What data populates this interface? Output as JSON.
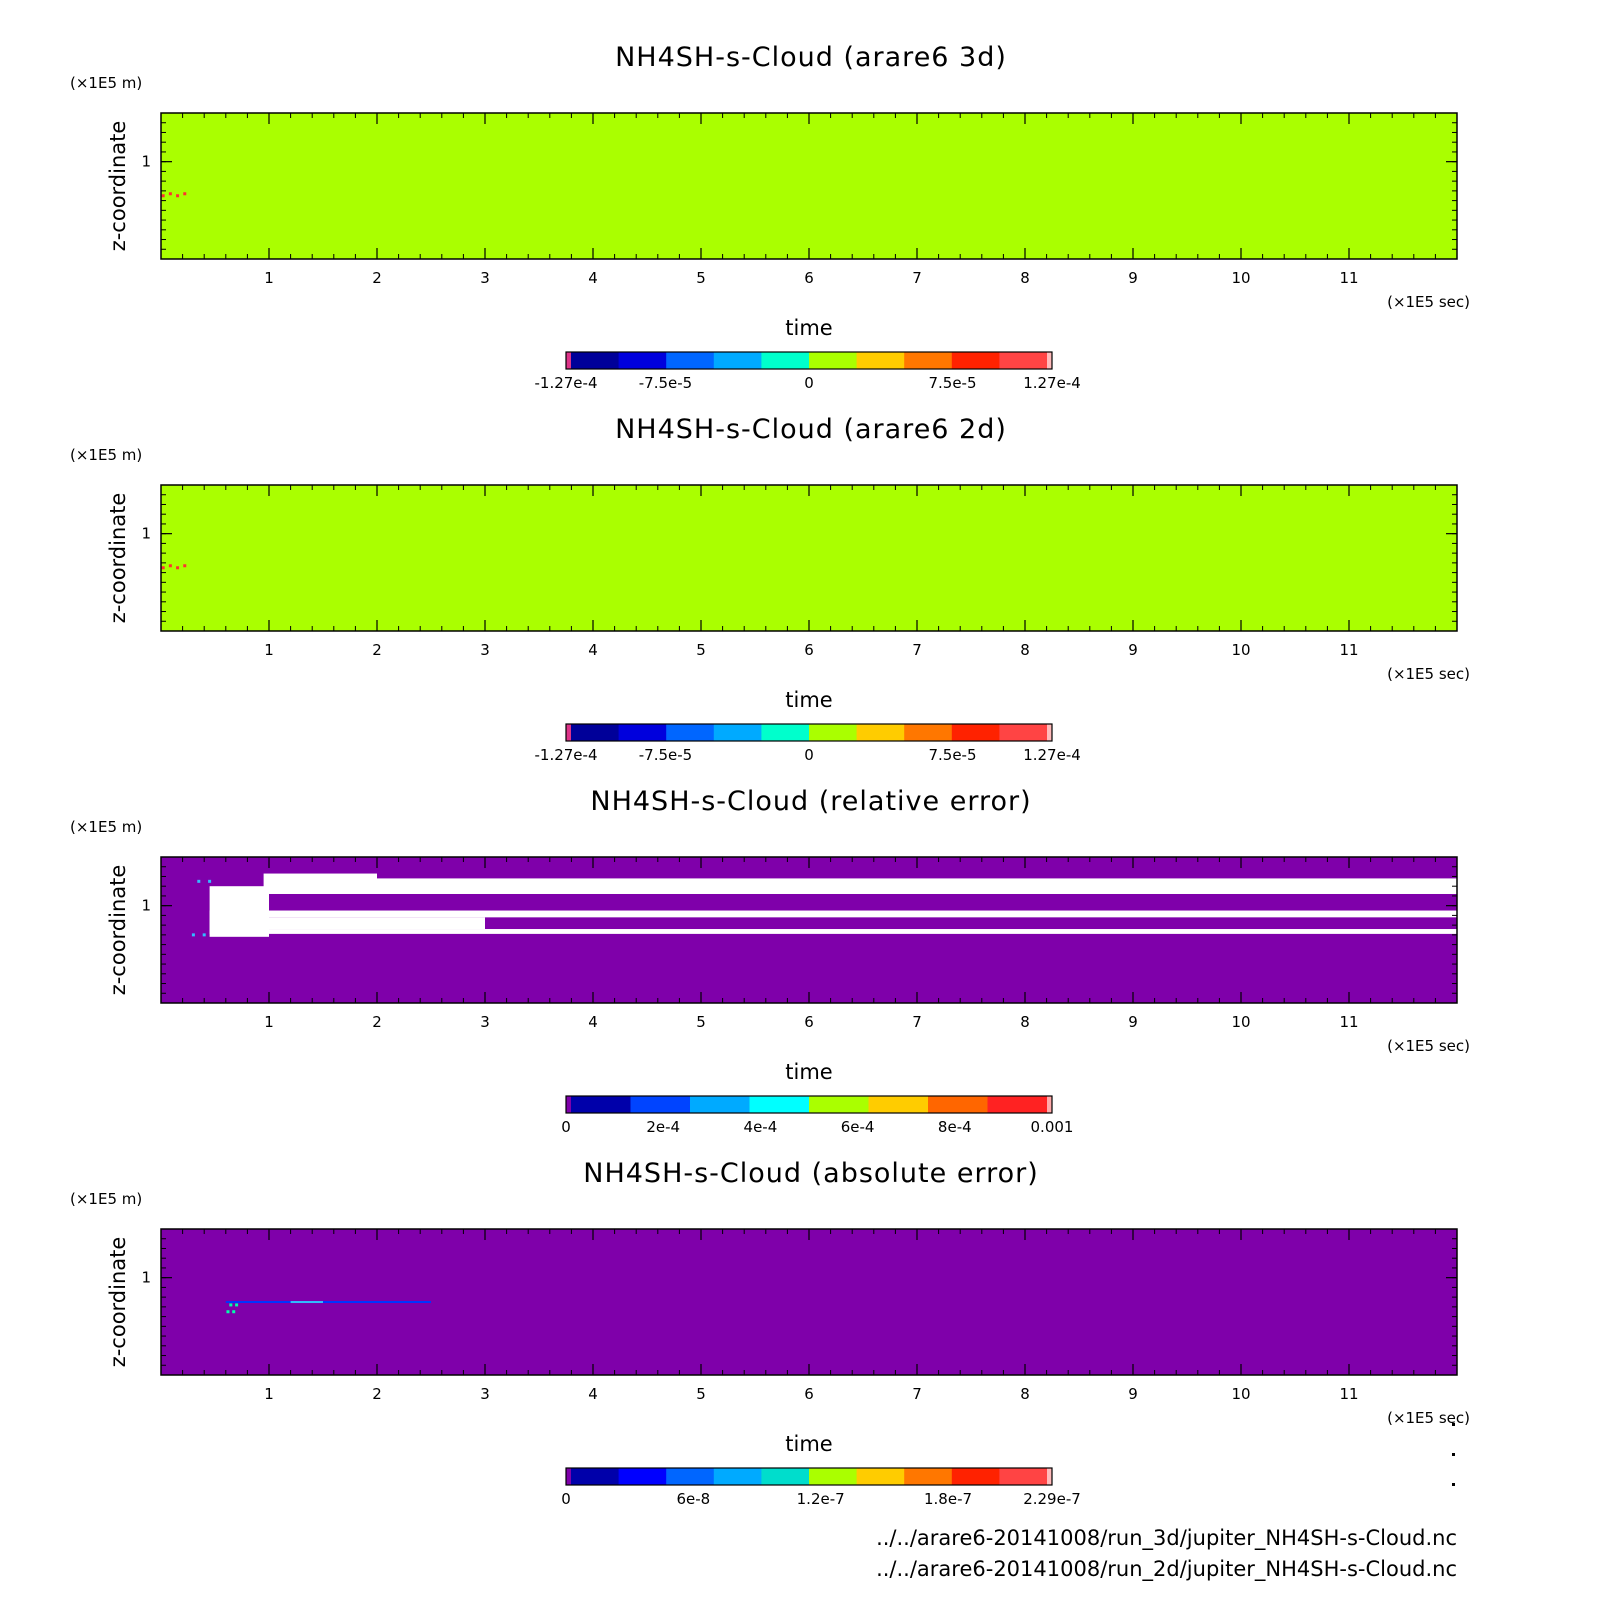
{
  "chart_data": [
    {
      "type": "heatmap",
      "title": "NH4SH-s-Cloud (arare6 3d)",
      "xlabel": "time",
      "ylabel": "z-coordinate",
      "x_unit": "(×1E5 sec)",
      "y_unit": "(×1E5 m)",
      "xlim": [
        0,
        12
      ],
      "ylim": [
        0,
        1.5
      ],
      "x_ticks": [
        1,
        2,
        3,
        4,
        5,
        6,
        7,
        8,
        9,
        10,
        11
      ],
      "y_ticks": [
        1
      ],
      "background_color": "#aaff00",
      "features": [
        {
          "x": [
            0.02,
            0.22
          ],
          "y": [
            0.66,
            0.66
          ],
          "color": "#ff3030",
          "kind": "dots"
        }
      ],
      "colorbar": {
        "range": [
          -0.000127,
          0.000127
        ],
        "colors": [
          "#dd3388",
          "#000099",
          "#0000dd",
          "#0066ff",
          "#00aaff",
          "#00ffcc",
          "#aaff00",
          "#ffcc00",
          "#ff7700",
          "#ff2200",
          "#ff4444",
          "#ffbbbb"
        ],
        "labels": [
          "-1.27e-4",
          "-7.5e-5",
          "0",
          "7.5e-5",
          "1.27e-4"
        ],
        "label_values": [
          -0.000127,
          -7.5e-05,
          0,
          7.5e-05,
          0.000127
        ]
      }
    },
    {
      "type": "heatmap",
      "title": "NH4SH-s-Cloud (arare6 2d)",
      "xlabel": "time",
      "ylabel": "z-coordinate",
      "x_unit": "(×1E5 sec)",
      "y_unit": "(×1E5 m)",
      "xlim": [
        0,
        12
      ],
      "ylim": [
        0,
        1.5
      ],
      "x_ticks": [
        1,
        2,
        3,
        4,
        5,
        6,
        7,
        8,
        9,
        10,
        11
      ],
      "y_ticks": [
        1
      ],
      "background_color": "#aaff00",
      "features": [
        {
          "x": [
            0.02,
            0.22
          ],
          "y": [
            0.66,
            0.66
          ],
          "color": "#ff3030",
          "kind": "dots"
        }
      ],
      "colorbar": {
        "range": [
          -0.000127,
          0.000127
        ],
        "colors": [
          "#dd3388",
          "#000099",
          "#0000dd",
          "#0066ff",
          "#00aaff",
          "#00ffcc",
          "#aaff00",
          "#ffcc00",
          "#ff7700",
          "#ff2200",
          "#ff4444",
          "#ffbbbb"
        ],
        "labels": [
          "-1.27e-4",
          "-7.5e-5",
          "0",
          "7.5e-5",
          "1.27e-4"
        ],
        "label_values": [
          -0.000127,
          -7.5e-05,
          0,
          7.5e-05,
          0.000127
        ]
      }
    },
    {
      "type": "heatmap",
      "title": "NH4SH-s-Cloud (relative error)",
      "xlabel": "time",
      "ylabel": "z-coordinate",
      "x_unit": "(×1E5 sec)",
      "y_unit": "(×1E5 m)",
      "xlim": [
        0,
        12
      ],
      "ylim": [
        0,
        1.5
      ],
      "x_ticks": [
        1,
        2,
        3,
        4,
        5,
        6,
        7,
        8,
        9,
        10,
        11
      ],
      "y_ticks": [
        1
      ],
      "background_color": "#7f00aa",
      "features": [
        {
          "x": [
            0.95,
            2.0
          ],
          "y": [
            1.12,
            1.33
          ],
          "color": "#ffffff",
          "kind": "band"
        },
        {
          "x": [
            2.0,
            12.0
          ],
          "y": [
            1.12,
            1.28
          ],
          "color": "#ffffff",
          "kind": "band"
        },
        {
          "x": [
            0.45,
            12.0
          ],
          "y": [
            0.88,
            0.95
          ],
          "color": "#ffffff",
          "kind": "band"
        },
        {
          "x": [
            0.45,
            12.0
          ],
          "y": [
            0.71,
            0.76
          ],
          "color": "#ffffff",
          "kind": "band"
        },
        {
          "x": [
            0.45,
            3.0
          ],
          "y": [
            0.76,
            0.88
          ],
          "color": "#ffffff",
          "kind": "band"
        },
        {
          "x": [
            0.45,
            1.0
          ],
          "y": [
            0.68,
            1.2
          ],
          "color": "#ffffff",
          "kind": "band"
        },
        {
          "x": [
            0.3,
            0.45
          ],
          "y": [
            0.7,
            1.25
          ],
          "color": "#33bbff",
          "kind": "dots"
        }
      ],
      "colorbar": {
        "range": [
          0,
          0.001
        ],
        "colors": [
          "#7f00aa",
          "#0000aa",
          "#0044ff",
          "#00aaff",
          "#00ffff",
          "#aaff00",
          "#ffcc00",
          "#ff6600",
          "#ff2222",
          "#ffaaaa"
        ],
        "labels": [
          "0",
          "2e-4",
          "4e-4",
          "6e-4",
          "8e-4",
          "0.001"
        ],
        "label_values": [
          0,
          0.0002,
          0.0004,
          0.0006,
          0.0008,
          0.001
        ]
      }
    },
    {
      "type": "heatmap",
      "title": "NH4SH-s-Cloud (absolute error)",
      "xlabel": "time",
      "ylabel": "z-coordinate",
      "x_unit": "(×1E5 sec)",
      "y_unit": "(×1E5 m)",
      "xlim": [
        0,
        12
      ],
      "ylim": [
        0,
        1.5
      ],
      "x_ticks": [
        1,
        2,
        3,
        4,
        5,
        6,
        7,
        8,
        9,
        10,
        11
      ],
      "y_ticks": [
        1
      ],
      "background_color": "#7f00aa",
      "features": [
        {
          "x": [
            0.6,
            2.5
          ],
          "y": [
            0.74,
            0.76
          ],
          "color": "#0033ff",
          "kind": "streak"
        },
        {
          "x": [
            1.2,
            1.5
          ],
          "y": [
            0.74,
            0.76
          ],
          "color": "#33bbff",
          "kind": "streak"
        },
        {
          "x": [
            0.62,
            0.7
          ],
          "y": [
            0.65,
            0.72
          ],
          "color": "#00ffaa",
          "kind": "dots"
        }
      ],
      "colorbar": {
        "range": [
          0,
          2.29e-07
        ],
        "colors": [
          "#7f00aa",
          "#0000aa",
          "#0000ff",
          "#0066ff",
          "#00aaff",
          "#00ddcc",
          "#aaff00",
          "#ffcc00",
          "#ff7700",
          "#ff2200",
          "#ff4444",
          "#ffbbbb"
        ],
        "labels": [
          "0",
          "6e-8",
          "1.2e-7",
          "1.8e-7",
          "2.29e-7"
        ],
        "label_values": [
          0,
          6e-08,
          1.2e-07,
          1.8e-07,
          2.29e-07
        ]
      }
    }
  ],
  "footer": {
    "lines": [
      "../../arare6-20141008/run_3d/jupiter_NH4SH-s-Cloud.nc",
      "../../arare6-20141008/run_2d/jupiter_NH4SH-s-Cloud.nc"
    ]
  }
}
